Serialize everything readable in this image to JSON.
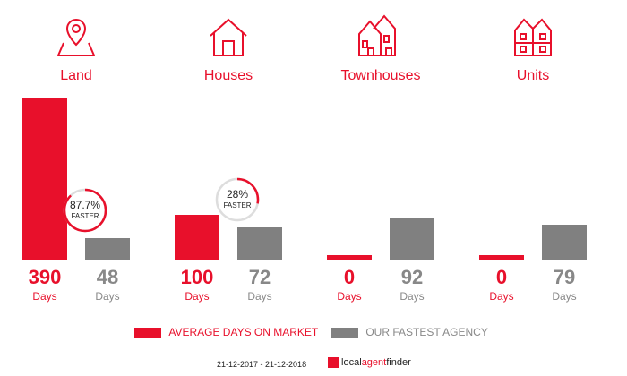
{
  "colors": {
    "average": "#e8102b",
    "agency": "#808080"
  },
  "chart_data": {
    "type": "bar",
    "categories": [
      "Land",
      "Houses",
      "Townhouses",
      "Units"
    ],
    "series": [
      {
        "name": "AVERAGE DAYS ON MARKET",
        "values": [
          390,
          100,
          0,
          0
        ]
      },
      {
        "name": "OUR FASTEST AGENCY",
        "values": [
          48,
          72,
          92,
          79
        ]
      }
    ],
    "unit_label": "Days",
    "badges": [
      {
        "category": "Land",
        "text": "87.7%",
        "sub": "FASTER",
        "fraction": 0.877
      },
      {
        "category": "Houses",
        "text": "28%",
        "sub": "FASTER",
        "fraction": 0.28
      }
    ],
    "icons": [
      "map-pin-icon",
      "house-icon",
      "townhouse-icon",
      "units-icon"
    ]
  },
  "footer": {
    "date_range": "21-12-2017 - 21-12-2018",
    "logo": "localagentfinder"
  }
}
